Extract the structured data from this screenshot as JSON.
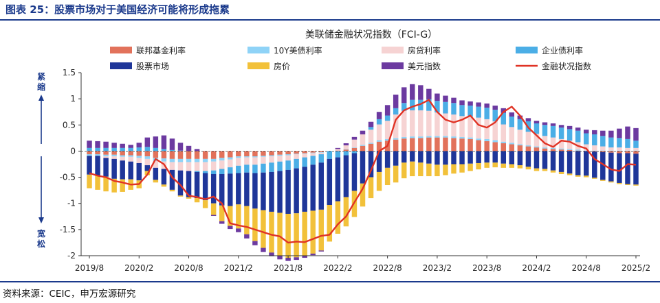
{
  "figure_title": "图表 25：股票市场对于美国经济可能将形成拖累",
  "source": "资料来源：CEIC，申万宏源研究",
  "colors": {
    "fed_rate": "#e2725b",
    "y10_treasury": "#8fd3f7",
    "mortgage_rate": "#f6d3d3",
    "corp_bond": "#4baee6",
    "stock_market": "#1f3699",
    "house_price": "#f2c13a",
    "usd_index": "#6c3aa0",
    "fci_line": "#e03325",
    "title_blue": "#1b3a8c"
  },
  "side_labels": {
    "tight": "紧缩",
    "loose": "宽松"
  },
  "chart_data": {
    "type": "bar",
    "stacked": true,
    "title": "美联储金融状况指数（FCI-G）",
    "xlabel": "",
    "ylabel": "",
    "ylim": [
      -2,
      1.5
    ],
    "yticks": [
      1.5,
      1,
      0.5,
      0,
      -0.5,
      -1,
      -1.5,
      -2
    ],
    "ytick_labels": [
      "1.5",
      "1",
      "0.5",
      "0",
      "-0.5",
      "-1",
      "-1.5",
      "-2"
    ],
    "x_tick_labels": [
      "2019/8",
      "2020/2",
      "2020/8",
      "2021/2",
      "2021/8",
      "2022/2",
      "2022/8",
      "2023/2",
      "2023/8",
      "2024/2",
      "2024/8",
      "2025/2"
    ],
    "x_tick_every": 6,
    "categories": [
      "2019/8",
      "2019/9",
      "2019/10",
      "2019/11",
      "2019/12",
      "2020/1",
      "2020/2",
      "2020/3",
      "2020/4",
      "2020/5",
      "2020/6",
      "2020/7",
      "2020/8",
      "2020/9",
      "2020/10",
      "2020/11",
      "2020/12",
      "2021/1",
      "2021/2",
      "2021/3",
      "2021/4",
      "2021/5",
      "2021/6",
      "2021/7",
      "2021/8",
      "2021/9",
      "2021/10",
      "2021/11",
      "2021/12",
      "2022/1",
      "2022/2",
      "2022/3",
      "2022/4",
      "2022/5",
      "2022/6",
      "2022/7",
      "2022/8",
      "2022/9",
      "2022/10",
      "2022/11",
      "2022/12",
      "2023/1",
      "2023/2",
      "2023/3",
      "2023/4",
      "2023/5",
      "2023/6",
      "2023/7",
      "2023/8",
      "2023/9",
      "2023/10",
      "2023/11",
      "2023/12",
      "2024/1",
      "2024/2",
      "2024/3",
      "2024/4",
      "2024/5",
      "2024/6",
      "2024/7",
      "2024/8",
      "2024/9",
      "2024/10",
      "2024/11",
      "2024/12",
      "2025/1",
      "2025/2"
    ],
    "legend_position": "top",
    "series": [
      {
        "name": "联邦基金利率",
        "color_key": "fed_rate",
        "values": [
          -0.06,
          -0.06,
          -0.07,
          -0.07,
          -0.08,
          -0.08,
          -0.09,
          -0.1,
          -0.13,
          -0.14,
          -0.15,
          -0.15,
          -0.15,
          -0.15,
          -0.15,
          -0.15,
          -0.13,
          -0.12,
          -0.1,
          -0.1,
          -0.1,
          -0.09,
          -0.08,
          -0.07,
          -0.06,
          -0.05,
          -0.04,
          -0.03,
          -0.02,
          0.0,
          0.01,
          0.03,
          0.06,
          0.1,
          0.14,
          0.18,
          0.2,
          0.22,
          0.24,
          0.25,
          0.25,
          0.26,
          0.26,
          0.26,
          0.25,
          0.24,
          0.23,
          0.21,
          0.19,
          0.17,
          0.15,
          0.13,
          0.11,
          0.09,
          0.07,
          0.05,
          0.04,
          0.03,
          0.02,
          0.01,
          0.0,
          -0.01,
          -0.02,
          -0.03,
          -0.04,
          -0.04,
          -0.05
        ]
      },
      {
        "name": "10Y美债利率",
        "color_key": "y10_treasury",
        "values": [
          -0.03,
          -0.03,
          -0.03,
          -0.03,
          -0.03,
          -0.03,
          -0.04,
          -0.05,
          -0.06,
          -0.06,
          -0.06,
          -0.06,
          -0.06,
          -0.06,
          -0.06,
          -0.05,
          -0.05,
          -0.04,
          -0.03,
          -0.02,
          -0.02,
          -0.02,
          -0.02,
          -0.02,
          -0.02,
          -0.01,
          -0.01,
          -0.01,
          -0.01,
          0.0,
          0.0,
          0.01,
          0.01,
          0.02,
          0.02,
          0.03,
          0.03,
          0.03,
          0.03,
          0.03,
          0.03,
          0.03,
          0.03,
          0.03,
          0.03,
          0.03,
          0.03,
          0.03,
          0.04,
          0.04,
          0.03,
          0.03,
          0.02,
          0.02,
          0.02,
          0.02,
          0.02,
          0.02,
          0.02,
          0.02,
          0.01,
          0.01,
          0.01,
          0.01,
          0.01,
          0.01,
          0.01
        ]
      },
      {
        "name": "房贷利率",
        "color_key": "mortgage_rate",
        "values": [
          0.0,
          0.0,
          -0.03,
          -0.05,
          -0.07,
          -0.09,
          -0.1,
          -0.12,
          -0.13,
          -0.14,
          -0.15,
          -0.16,
          -0.17,
          -0.17,
          -0.17,
          -0.17,
          -0.16,
          -0.15,
          -0.15,
          -0.14,
          -0.14,
          -0.13,
          -0.12,
          -0.11,
          -0.1,
          -0.09,
          -0.07,
          -0.05,
          -0.03,
          0.0,
          0.03,
          0.07,
          0.15,
          0.2,
          0.25,
          0.3,
          0.35,
          0.45,
          0.5,
          0.5,
          0.5,
          0.48,
          0.45,
          0.43,
          0.42,
          0.4,
          0.4,
          0.4,
          0.38,
          0.36,
          0.33,
          0.3,
          0.28,
          0.26,
          0.24,
          0.22,
          0.2,
          0.18,
          0.16,
          0.14,
          0.12,
          0.1,
          0.08,
          0.06,
          0.06,
          0.05,
          0.05
        ]
      },
      {
        "name": "企业债利率",
        "color_key": "corp_bond",
        "values": [
          0.06,
          0.06,
          0.06,
          0.06,
          0.06,
          0.06,
          0.07,
          0.08,
          0.06,
          0.04,
          0.02,
          0.01,
          0.0,
          -0.02,
          -0.04,
          -0.07,
          -0.1,
          -0.12,
          -0.14,
          -0.15,
          -0.16,
          -0.17,
          -0.18,
          -0.18,
          -0.18,
          -0.18,
          -0.18,
          -0.17,
          -0.16,
          -0.15,
          -0.12,
          -0.08,
          -0.04,
          0.0,
          0.05,
          0.1,
          0.1,
          0.12,
          0.15,
          0.2,
          0.2,
          0.22,
          0.22,
          0.22,
          0.22,
          0.21,
          0.21,
          0.21,
          0.22,
          0.22,
          0.22,
          0.2,
          0.2,
          0.2,
          0.2,
          0.21,
          0.22,
          0.22,
          0.22,
          0.22,
          0.21,
          0.21,
          0.2,
          0.19,
          0.18,
          0.17,
          0.14
        ]
      },
      {
        "name": "股票市场",
        "color_key": "stock_market",
        "values": [
          -0.36,
          -0.38,
          -0.36,
          -0.38,
          -0.36,
          -0.34,
          -0.33,
          -0.11,
          -0.23,
          -0.3,
          -0.38,
          -0.48,
          -0.5,
          -0.5,
          -0.52,
          -0.56,
          -0.6,
          -0.62,
          -0.6,
          -0.64,
          -0.68,
          -0.72,
          -0.76,
          -0.8,
          -0.84,
          -0.86,
          -0.86,
          -0.88,
          -0.9,
          -0.88,
          -0.84,
          -0.8,
          -0.72,
          -0.62,
          -0.5,
          -0.4,
          -0.32,
          -0.28,
          -0.22,
          -0.2,
          -0.22,
          -0.24,
          -0.26,
          -0.26,
          -0.25,
          -0.25,
          -0.24,
          -0.23,
          -0.22,
          -0.22,
          -0.24,
          -0.25,
          -0.27,
          -0.3,
          -0.33,
          -0.34,
          -0.37,
          -0.4,
          -0.43,
          -0.46,
          -0.47,
          -0.5,
          -0.53,
          -0.55,
          -0.57,
          -0.59,
          -0.59
        ]
      },
      {
        "name": "房价",
        "color_key": "house_price",
        "values": [
          -0.26,
          -0.27,
          -0.28,
          -0.26,
          -0.24,
          -0.2,
          -0.15,
          -0.08,
          -0.05,
          -0.04,
          -0.03,
          -0.02,
          -0.03,
          -0.08,
          -0.15,
          -0.22,
          -0.3,
          -0.38,
          -0.46,
          -0.54,
          -0.62,
          -0.72,
          -0.78,
          -0.82,
          -0.84,
          -0.84,
          -0.84,
          -0.82,
          -0.78,
          -0.7,
          -0.62,
          -0.56,
          -0.5,
          -0.44,
          -0.4,
          -0.36,
          -0.33,
          -0.32,
          -0.3,
          -0.28,
          -0.26,
          -0.24,
          -0.22,
          -0.2,
          -0.18,
          -0.16,
          -0.14,
          -0.12,
          -0.1,
          -0.09,
          -0.08,
          -0.07,
          -0.06,
          -0.05,
          -0.05,
          -0.04,
          -0.04,
          -0.04,
          -0.03,
          -0.03,
          -0.03,
          -0.02,
          -0.02,
          -0.02,
          -0.02,
          -0.02,
          -0.02
        ]
      },
      {
        "name": "美元指数",
        "color_key": "usd_index",
        "values": [
          0.14,
          0.13,
          0.12,
          0.1,
          0.08,
          0.06,
          0.09,
          0.18,
          0.22,
          0.26,
          0.22,
          0.15,
          0.1,
          0.04,
          0.0,
          -0.02,
          -0.05,
          -0.06,
          -0.07,
          -0.08,
          -0.08,
          -0.08,
          -0.07,
          -0.07,
          -0.06,
          -0.05,
          -0.04,
          -0.03,
          -0.02,
          0.0,
          0.02,
          0.04,
          0.05,
          0.07,
          0.1,
          0.14,
          0.2,
          0.26,
          0.3,
          0.3,
          0.28,
          0.2,
          0.14,
          0.12,
          0.1,
          0.09,
          0.08,
          0.08,
          0.08,
          0.08,
          0.09,
          0.08,
          0.07,
          0.06,
          0.05,
          0.05,
          0.05,
          0.05,
          0.06,
          0.06,
          0.07,
          0.08,
          0.1,
          0.13,
          0.18,
          0.24,
          0.24
        ]
      }
    ],
    "line": {
      "name": "金融状况指数",
      "color_key": "fci_line",
      "values": [
        -0.42,
        -0.47,
        -0.5,
        -0.57,
        -0.6,
        -0.64,
        -0.63,
        -0.45,
        -0.15,
        -0.25,
        -0.5,
        -0.65,
        -0.85,
        -0.88,
        -0.92,
        -0.87,
        -1.0,
        -1.38,
        -1.42,
        -1.45,
        -1.5,
        -1.55,
        -1.6,
        -1.63,
        -1.75,
        -1.73,
        -1.74,
        -1.68,
        -1.62,
        -1.6,
        -1.4,
        -1.25,
        -0.98,
        -0.72,
        -0.37,
        0.0,
        0.1,
        0.6,
        0.78,
        0.85,
        0.9,
        0.98,
        0.75,
        0.6,
        0.55,
        0.6,
        0.68,
        0.5,
        0.45,
        0.55,
        0.75,
        0.85,
        0.68,
        0.45,
        0.3,
        0.15,
        0.08,
        0.2,
        0.18,
        0.1,
        0.05,
        -0.15,
        -0.25,
        -0.35,
        -0.38,
        -0.25,
        -0.26
      ]
    }
  }
}
